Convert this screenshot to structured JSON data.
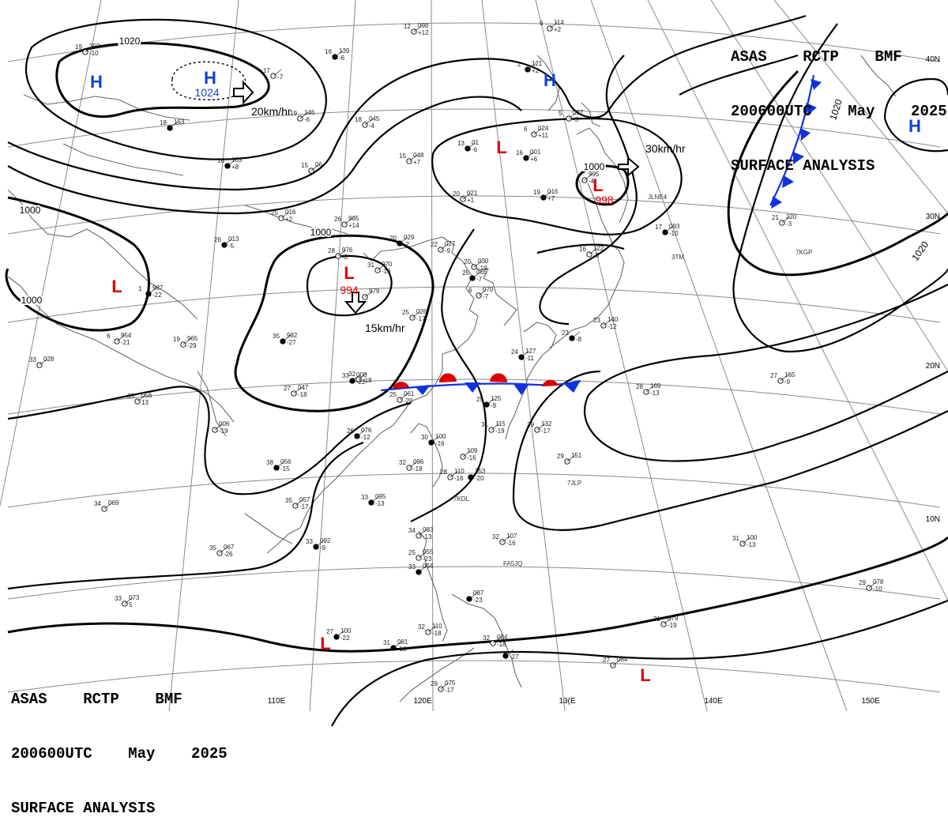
{
  "header": {
    "line1": "ASAS    RCTP    BMF",
    "line2": "200600UTC    May    2025",
    "line3": "SURFACE ANALYSIS"
  },
  "axis_labels": {
    "lon": [
      "110E",
      "120E",
      "13(E",
      "140E",
      "150E"
    ],
    "lat": [
      "40N",
      "30N",
      "20N",
      "10N"
    ]
  },
  "isobar_labels": [
    "1020",
    "1020",
    "1000",
    "1000",
    "1000",
    "1000",
    "1020"
  ],
  "pressure_centers": [
    {
      "symbol": "H",
      "value": "1024",
      "color": "#1144cc"
    },
    {
      "symbol": "H",
      "value": "",
      "color": "#1144cc"
    },
    {
      "symbol": "H",
      "value": "",
      "color": "#1144cc"
    },
    {
      "symbol": "H",
      "value": "",
      "color": "#1144cc"
    },
    {
      "symbol": "L",
      "value": "",
      "color": "#dd0000"
    },
    {
      "symbol": "L",
      "value": "994",
      "color": "#dd0000"
    },
    {
      "symbol": "L",
      "value": "",
      "color": "#dd0000"
    },
    {
      "symbol": "L",
      "value": "998",
      "color": "#dd0000"
    },
    {
      "symbol": "L",
      "value": "",
      "color": "#dd0000"
    },
    {
      "symbol": "L",
      "value": "",
      "color": "#dd0000"
    }
  ],
  "movement": [
    "20km/hr",
    "15km/hr",
    "30km/hr"
  ],
  "stations": [
    {
      "t": "16",
      "p": "139",
      "d": "-6"
    },
    {
      "t": "12",
      "p": "098",
      "d": "+12"
    },
    {
      "t": "6",
      "p": "114",
      "d": "+2"
    },
    {
      "t": "2",
      "p": "121",
      "d": "+2"
    },
    {
      "t": "19",
      "p": "202",
      "d": "-10"
    },
    {
      "t": "17",
      "p": "",
      "d": "-7"
    },
    {
      "t": "18",
      "p": "163",
      "d": ""
    },
    {
      "t": "19",
      "p": "146",
      "d": "-6"
    },
    {
      "t": "18",
      "p": "045",
      "d": "-4"
    },
    {
      "t": "13",
      "p": "01",
      "d": "-6"
    },
    {
      "t": "6",
      "p": "024",
      "d": "+11"
    },
    {
      "t": "5",
      "p": "037",
      "d": "-5"
    },
    {
      "t": "16",
      "p": "163",
      "d": "+8"
    },
    {
      "t": "15",
      "p": "06",
      "d": ""
    },
    {
      "t": "15",
      "p": "048",
      "d": "+7"
    },
    {
      "t": "16",
      "p": "001",
      "d": "+6"
    },
    {
      "t": "",
      "p": "995",
      "d": "-4"
    },
    {
      "t": "20",
      "p": "021",
      "d": "+1"
    },
    {
      "t": "19",
      "p": "016",
      "d": "+7"
    },
    {
      "t": "25",
      "p": "016",
      "d": "+2"
    },
    {
      "t": "26",
      "p": "985",
      "d": "+14"
    },
    {
      "t": "26",
      "p": "013",
      "d": "-5"
    },
    {
      "t": "28",
      "p": "976",
      "d": "-8"
    },
    {
      "t": "31",
      "p": "970",
      "d": "-16"
    },
    {
      "t": "20",
      "p": "029",
      "d": "-2"
    },
    {
      "t": "22",
      "p": "027",
      "d": "-9"
    },
    {
      "t": "20",
      "p": "030",
      "d": "-19"
    },
    {
      "t": "17",
      "p": "093",
      "d": "-10"
    },
    {
      "t": "16",
      "p": "122",
      "d": "-5"
    },
    {
      "t": "21",
      "p": "220",
      "d": "-3"
    },
    {
      "t": "1",
      "p": "987",
      "d": "-22"
    },
    {
      "t": "6",
      "p": "954",
      "d": "-21"
    },
    {
      "t": "19",
      "p": "965",
      "d": "-29"
    },
    {
      "t": "35",
      "p": "982",
      "d": "-27"
    },
    {
      "t": "",
      "p": "979",
      "d": ""
    },
    {
      "t": "25",
      "p": "026",
      "d": "-17"
    },
    {
      "t": "25",
      "p": "065",
      "d": "-7"
    },
    {
      "t": "6",
      "p": "070",
      "d": "-7"
    },
    {
      "t": "23",
      "p": "140",
      "d": "-12"
    },
    {
      "t": "23",
      "p": "",
      "d": "-8"
    },
    {
      "t": "33",
      "p": "028",
      "d": ""
    },
    {
      "t": "32",
      "p": "",
      "d": "-18"
    },
    {
      "t": "24",
      "p": "127",
      "d": "-11"
    },
    {
      "t": "28",
      "p": "169",
      "d": "-13"
    },
    {
      "t": "27",
      "p": "165",
      "d": "-9"
    },
    {
      "t": "33",
      "p": "008",
      "d": "-22"
    },
    {
      "t": "27",
      "p": "047",
      "d": "-18"
    },
    {
      "t": "25",
      "p": "061",
      "d": "-20"
    },
    {
      "t": "29",
      "p": "125",
      "d": "-9"
    },
    {
      "t": "33",
      "p": "056",
      "d": "13"
    },
    {
      "t": "",
      "p": "006",
      "d": "-19"
    },
    {
      "t": "26",
      "p": "076",
      "d": "-12"
    },
    {
      "t": "31",
      "p": "115",
      "d": "-19"
    },
    {
      "t": "29",
      "p": "132",
      "d": "-17"
    },
    {
      "t": "30",
      "p": "100",
      "d": "-16"
    },
    {
      "t": "",
      "p": "109",
      "d": "-16"
    },
    {
      "t": "29",
      "p": "151",
      "d": ""
    },
    {
      "t": "38",
      "p": "056",
      "d": "-15"
    },
    {
      "t": "32",
      "p": "096",
      "d": "-18"
    },
    {
      "t": "28",
      "p": "110",
      "d": "-16"
    },
    {
      "t": "",
      "p": "153",
      "d": "-20"
    },
    {
      "t": "34",
      "p": "069",
      "d": ""
    },
    {
      "t": "35",
      "p": "057",
      "d": "-17"
    },
    {
      "t": "33",
      "p": "095",
      "d": "-13"
    },
    {
      "t": "34",
      "p": "083",
      "d": "-13"
    },
    {
      "t": "32",
      "p": "107",
      "d": "-16"
    },
    {
      "t": "33",
      "p": "092",
      "d": "-9"
    },
    {
      "t": "35",
      "p": "067",
      "d": "-26"
    },
    {
      "t": "25",
      "p": "055",
      "d": "-23"
    },
    {
      "t": "33",
      "p": "054",
      "d": ""
    },
    {
      "t": "31",
      "p": "100",
      "d": "-13"
    },
    {
      "t": "33",
      "p": "073",
      "d": "5"
    },
    {
      "t": "",
      "p": "087",
      "d": "-23"
    },
    {
      "t": "29",
      "p": "078",
      "d": "-10"
    },
    {
      "t": "31",
      "p": "079",
      "d": "-19"
    },
    {
      "t": "27",
      "p": "100",
      "d": "-22"
    },
    {
      "t": "32",
      "p": "110",
      "d": "-18"
    },
    {
      "t": "32",
      "p": "084",
      "d": "-18"
    },
    {
      "t": "31",
      "p": "081",
      "d": "-10"
    },
    {
      "t": "27",
      "p": "084",
      "d": ""
    },
    {
      "t": "29",
      "p": "075",
      "d": "-17"
    },
    {
      "t": "",
      "p": "",
      "d": "-27"
    }
  ],
  "ship_ids": [
    "7KGP",
    "7JLP",
    "FA5JQ",
    "7KDL",
    "JLNE4",
    "3TM"
  ],
  "colors": {
    "isobar": "#000000",
    "grid": "#8a8a8a",
    "coast": "#6a6a6a",
    "high": "#1144cc",
    "low": "#dd0000",
    "cold_front": "#1133dd",
    "warm_front": "#dd0000"
  }
}
